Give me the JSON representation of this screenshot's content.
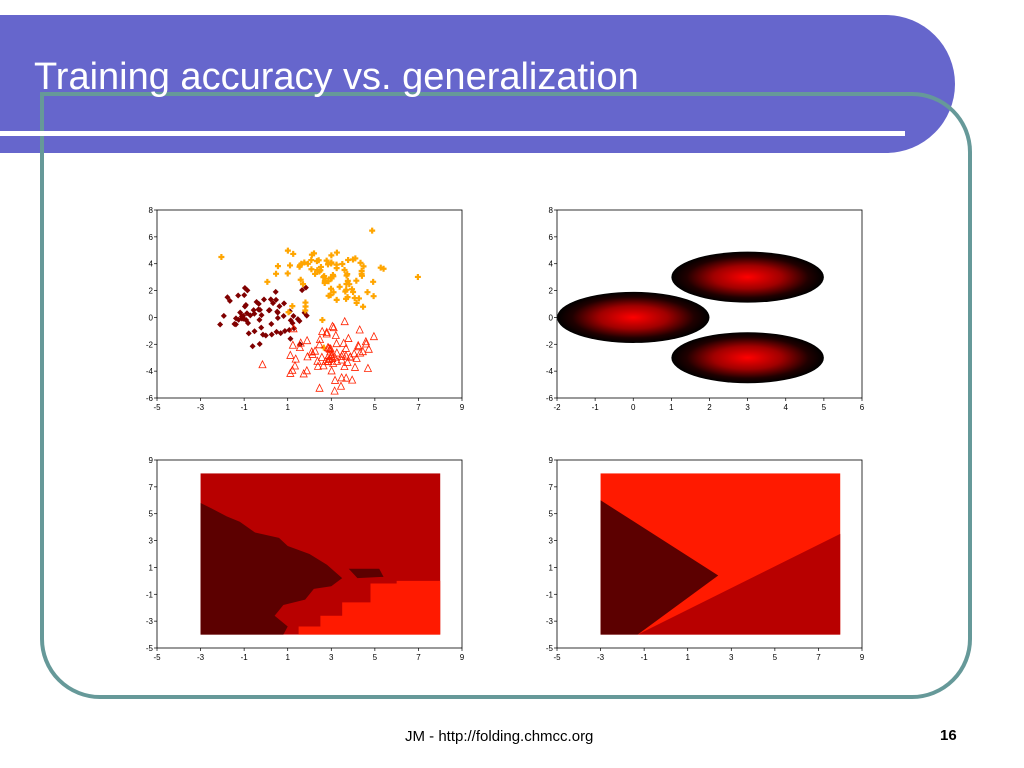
{
  "slide": {
    "title": "Training accuracy vs. generalization",
    "footer": "JM - http://folding.chmcc.org",
    "page_number": "16"
  },
  "colors": {
    "title_band": "#6666cc",
    "frame_border": "#669999",
    "class_dark": "#800000",
    "class_orange": "#ffa500",
    "class_red": "#ff2200",
    "region_dark": "#5c0000",
    "region_mid": "#b80000",
    "region_bright": "#ff1a00"
  },
  "chart_data": [
    {
      "type": "scatter",
      "xlim": [
        -5,
        9
      ],
      "ylim": [
        -6,
        8
      ],
      "x_ticks": [
        "-5",
        "-3",
        "-1",
        "1",
        "3",
        "5",
        "7",
        "9"
      ],
      "y_ticks": [
        "8",
        "6",
        "4",
        "2",
        "0",
        "-2",
        "-4",
        "-6"
      ],
      "series": [
        {
          "marker": "diamond",
          "color": "#800000",
          "center": [
            0,
            0
          ],
          "spread": 1.0,
          "count": 70
        },
        {
          "marker": "plus",
          "color": "#ffa500",
          "center": [
            3,
            3
          ],
          "spread": 1.2,
          "count": 90
        },
        {
          "marker": "triangle",
          "color": "#ff2200",
          "center": [
            3,
            -3
          ],
          "spread": 1.1,
          "count": 80
        }
      ]
    },
    {
      "type": "heatmap",
      "xlim": [
        -2,
        6
      ],
      "ylim": [
        -6,
        8
      ],
      "x_ticks": [
        "-2",
        "-1",
        "0",
        "1",
        "2",
        "3",
        "4",
        "5",
        "6"
      ],
      "y_ticks": [
        "8",
        "6",
        "4",
        "2",
        "0",
        "-2",
        "-4",
        "-6"
      ],
      "blobs": [
        {
          "center": [
            0,
            0
          ],
          "rx": 2,
          "ry": 1.9
        },
        {
          "center": [
            3,
            3
          ],
          "rx": 2,
          "ry": 1.9
        },
        {
          "center": [
            3,
            -3
          ],
          "rx": 2,
          "ry": 1.9
        }
      ]
    },
    {
      "type": "heatmap",
      "xlim": [
        -5,
        9
      ],
      "ylim": [
        -5,
        9
      ],
      "x_ticks": [
        "-5",
        "-3",
        "-1",
        "1",
        "3",
        "5",
        "7",
        "9"
      ],
      "y_ticks": [
        "9",
        "7",
        "5",
        "3",
        "1",
        "-1",
        "-3",
        "-5"
      ],
      "region_extent": {
        "x": [
          -3,
          8
        ],
        "y": [
          -4,
          8
        ]
      },
      "boundary": "irregular"
    },
    {
      "type": "heatmap",
      "xlim": [
        -5,
        9
      ],
      "ylim": [
        -5,
        9
      ],
      "x_ticks": [
        "-5",
        "-3",
        "-1",
        "1",
        "3",
        "5",
        "7",
        "9"
      ],
      "y_ticks": [
        "9",
        "7",
        "5",
        "3",
        "1",
        "-1",
        "-3",
        "-5"
      ],
      "region_extent": {
        "x": [
          -3,
          8
        ],
        "y": [
          -4,
          8
        ]
      },
      "boundary": "linear",
      "lines": [
        {
          "from": [
            -3,
            6
          ],
          "to": [
            2.4,
            0.4
          ]
        },
        {
          "from": [
            -1.3,
            -4
          ],
          "to": [
            8,
            3.5
          ]
        }
      ]
    }
  ]
}
